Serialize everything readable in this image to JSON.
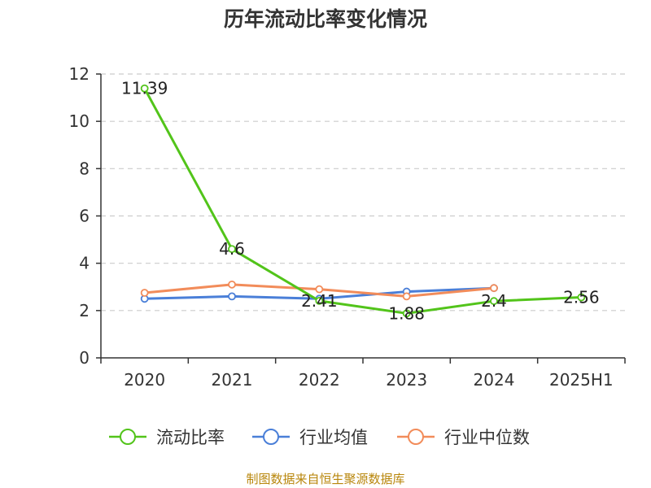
{
  "chart_data": {
    "type": "line",
    "title": "历年流动比率变化情况",
    "categories": [
      "2020",
      "2021",
      "2022",
      "2023",
      "2024",
      "2025H1"
    ],
    "ylim": [
      0,
      12
    ],
    "yticks": [
      0,
      2,
      4,
      6,
      8,
      10,
      12
    ],
    "grid": true,
    "legend_position": "bottom",
    "series": [
      {
        "name": "流动比率",
        "color": "#52c41a",
        "values": [
          11.39,
          4.6,
          2.41,
          1.88,
          2.4,
          2.56
        ],
        "labels": [
          "11.39",
          "4.6",
          "2.41",
          "1.88",
          "2.4",
          "2.56"
        ]
      },
      {
        "name": "行业均值",
        "color": "#4a7fd8",
        "values": [
          2.5,
          2.6,
          2.5,
          2.8,
          2.95,
          null
        ]
      },
      {
        "name": "行业中位数",
        "color": "#f28c5a",
        "values": [
          2.75,
          3.1,
          2.9,
          2.6,
          2.95,
          null
        ]
      }
    ]
  },
  "source": "制图数据来自恒生聚源数据库"
}
